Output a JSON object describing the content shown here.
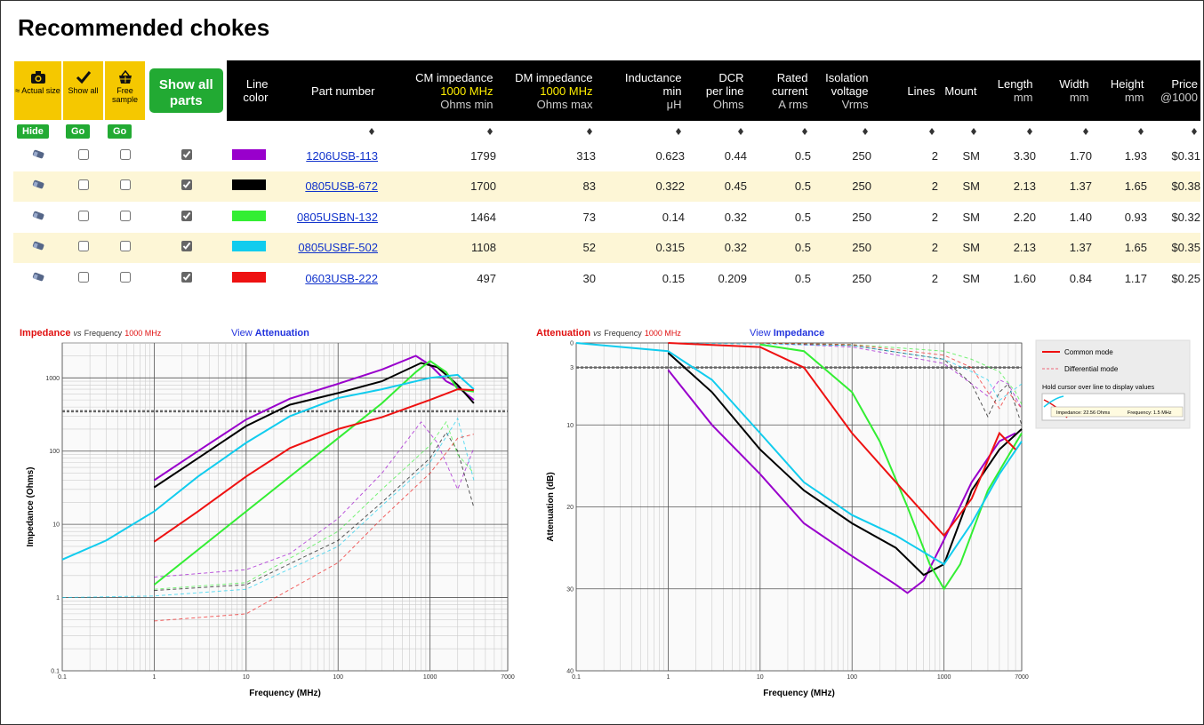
{
  "header": {
    "title": "Recommended chokes"
  },
  "toolbar": {
    "actual_size": "≈ Actual size",
    "show_all": "Show all",
    "free_sample": "Free sample",
    "show_all_parts": "Show all parts",
    "hide": "Hide",
    "go": [
      "Go",
      "Go"
    ]
  },
  "table": {
    "columns": [
      {
        "name": [
          "Line",
          "color"
        ]
      },
      {
        "name": [
          "Part number"
        ]
      },
      {
        "name": [
          "CM impedance"
        ],
        "freq": "1000 MHz",
        "unit": "Ohms min"
      },
      {
        "name": [
          "DM impedance"
        ],
        "freq": "1000 MHz",
        "unit": "Ohms max"
      },
      {
        "name": [
          "Inductance",
          "min"
        ],
        "unit": "μH"
      },
      {
        "name": [
          "DCR",
          "per line"
        ],
        "unit": "Ohms"
      },
      {
        "name": [
          "Rated",
          "current"
        ],
        "unit": "A rms"
      },
      {
        "name": [
          "Isolation",
          "voltage"
        ],
        "unit": "Vrms"
      },
      {
        "name": [
          "Lines"
        ]
      },
      {
        "name": [
          "Mount"
        ]
      },
      {
        "name": [
          "Length"
        ],
        "unit": "mm"
      },
      {
        "name": [
          "Width"
        ],
        "unit": "mm"
      },
      {
        "name": [
          "Height"
        ],
        "unit": "mm"
      },
      {
        "name": [
          "Price"
        ],
        "unit": "@1000"
      }
    ],
    "rows": [
      {
        "color": "#9900cc",
        "show_all": false,
        "free_sample": false,
        "shown": true,
        "cells": [
          "1206USB-113",
          "1799",
          "313",
          "0.623",
          "0.44",
          "0.5",
          "250",
          "2",
          "SM",
          "3.30",
          "1.70",
          "1.93",
          "$0.31"
        ]
      },
      {
        "color": "#000000",
        "show_all": false,
        "free_sample": false,
        "shown": true,
        "cells": [
          "0805USB-672",
          "1700",
          "83",
          "0.322",
          "0.45",
          "0.5",
          "250",
          "2",
          "SM",
          "2.13",
          "1.37",
          "1.65",
          "$0.38"
        ]
      },
      {
        "color": "#33ee33",
        "show_all": false,
        "free_sample": false,
        "shown": true,
        "cells": [
          "0805USBN-132",
          "1464",
          "73",
          "0.14",
          "0.32",
          "0.5",
          "250",
          "2",
          "SM",
          "2.20",
          "1.40",
          "0.93",
          "$0.32"
        ]
      },
      {
        "color": "#11ccee",
        "show_all": false,
        "free_sample": false,
        "shown": true,
        "cells": [
          "0805USBF-502",
          "1108",
          "52",
          "0.315",
          "0.32",
          "0.5",
          "250",
          "2",
          "SM",
          "2.13",
          "1.37",
          "1.65",
          "$0.35"
        ]
      },
      {
        "color": "#ee1111",
        "show_all": false,
        "free_sample": false,
        "shown": true,
        "cells": [
          "0603USB-222",
          "497",
          "30",
          "0.15",
          "0.209",
          "0.5",
          "250",
          "2",
          "SM",
          "1.60",
          "0.84",
          "1.17",
          "$0.25"
        ]
      }
    ]
  },
  "legend": {
    "common": "Common mode",
    "differential": "Differential mode",
    "hint": "Hold cursor over line to display values",
    "example": [
      "Impedance: 22.56 Ohms",
      "Frequency: 1.5 MHz"
    ],
    "common_color": "#ee1111",
    "differential_color": "#ee6677"
  },
  "chart_data": [
    {
      "type": "line",
      "title_parts": [
        "Impedance",
        "vs",
        "Frequency",
        "1000 MHz"
      ],
      "link_parts": [
        "View",
        "Attenuation"
      ],
      "xlabel": "Frequency (MHz)",
      "ylabel": "Impedance (Ohms)",
      "x_log": true,
      "y_log": true,
      "grid": true,
      "xlim": [
        0.1,
        7000
      ],
      "xticks": [
        0.1,
        1,
        10,
        100,
        1000,
        7000
      ],
      "ylim": [
        0.1,
        3000
      ],
      "yticks": [
        0.1,
        1,
        10,
        100,
        1000
      ],
      "reference_line": 350,
      "common_mode": [
        {
          "color": "#9900cc",
          "x": [
            1,
            3,
            10,
            30,
            100,
            300,
            700,
            1000,
            1500,
            2000,
            3000
          ],
          "values": [
            40,
            100,
            270,
            520,
            830,
            1300,
            2000,
            1500,
            900,
            750,
            500
          ]
        },
        {
          "color": "#000000",
          "x": [
            1,
            3,
            10,
            30,
            100,
            300,
            800,
            1200,
            2000,
            3000
          ],
          "values": [
            32,
            80,
            220,
            430,
            620,
            900,
            1600,
            1400,
            800,
            450
          ]
        },
        {
          "color": "#33ee33",
          "x": [
            1,
            10,
            100,
            300,
            700,
            1000,
            1500,
            2000,
            3000
          ],
          "values": [
            1.5,
            15,
            150,
            450,
            1200,
            1700,
            1200,
            700,
            650
          ]
        },
        {
          "color": "#11ccee",
          "x": [
            0.1,
            0.3,
            1,
            3,
            10,
            30,
            100,
            300,
            1000,
            2000,
            3000
          ],
          "values": [
            3.3,
            6,
            15,
            45,
            130,
            300,
            530,
            700,
            1000,
            1100,
            700
          ]
        },
        {
          "color": "#ee1111",
          "x": [
            1,
            3,
            10,
            30,
            100,
            300,
            1000,
            2000,
            3000
          ],
          "values": [
            5.8,
            15,
            45,
            110,
            200,
            290,
            500,
            700,
            680
          ]
        }
      ],
      "differential_mode": [
        {
          "color": "#9900cc",
          "x": [
            1,
            10,
            30,
            100,
            300,
            800,
            1200,
            2000,
            3000
          ],
          "values": [
            1.9,
            2.4,
            4,
            12,
            50,
            250,
            130,
            30,
            110
          ]
        },
        {
          "color": "#000000",
          "x": [
            1,
            10,
            100,
            300,
            1000,
            1500,
            2000,
            3000
          ],
          "values": [
            1.25,
            1.5,
            6,
            20,
            80,
            180,
            100,
            17
          ]
        },
        {
          "color": "#33ee33",
          "x": [
            1,
            10,
            100,
            300,
            1000,
            1500,
            2000,
            3000
          ],
          "values": [
            1.3,
            1.6,
            8,
            30,
            120,
            250,
            90,
            50
          ]
        },
        {
          "color": "#11ccee",
          "x": [
            0.1,
            1,
            10,
            100,
            300,
            1000,
            2000,
            3000
          ],
          "values": [
            1,
            1.05,
            1.3,
            5,
            18,
            70,
            280,
            40
          ]
        },
        {
          "color": "#ee1111",
          "x": [
            1,
            10,
            100,
            300,
            1000,
            2000,
            3000
          ],
          "values": [
            0.48,
            0.6,
            3,
            12,
            50,
            150,
            170
          ]
        }
      ]
    },
    {
      "type": "line",
      "title_parts": [
        "Attenuation",
        "vs",
        "Frequency",
        "1000 MHz"
      ],
      "link_parts": [
        "View",
        "Impedance"
      ],
      "xlabel": "Frequency (MHz)",
      "ylabel": "Attenuation (dB)",
      "x_log": true,
      "y_log": false,
      "grid": true,
      "xlim": [
        0.1,
        7000
      ],
      "xticks": [
        0.1,
        1,
        10,
        100,
        1000,
        7000
      ],
      "ylim": [
        40,
        0
      ],
      "yticks": [
        0,
        3,
        10,
        20,
        30,
        40
      ],
      "reference_line": 3,
      "common_mode": [
        {
          "color": "#9900cc",
          "x": [
            1,
            3,
            10,
            30,
            100,
            300,
            400,
            600,
            1000,
            2000,
            4000,
            6000
          ],
          "values": [
            3.3,
            10,
            16,
            22,
            26,
            29.5,
            30.5,
            29,
            24,
            17,
            12,
            11
          ]
        },
        {
          "color": "#000000",
          "x": [
            1,
            3,
            10,
            30,
            100,
            300,
            600,
            1000,
            2000,
            4000,
            7000
          ],
          "values": [
            1.2,
            6,
            13,
            18,
            22,
            25,
            28.3,
            27,
            18,
            13,
            10.5
          ]
        },
        {
          "color": "#33ee33",
          "x": [
            10,
            30,
            100,
            200,
            400,
            700,
            1000,
            1500,
            3000,
            7000
          ],
          "values": [
            0.2,
            1,
            6,
            12,
            20,
            27,
            30,
            27,
            18,
            11
          ]
        },
        {
          "color": "#11ccee",
          "x": [
            0.1,
            1,
            3,
            10,
            30,
            100,
            300,
            1000,
            2000,
            4000,
            7000
          ],
          "values": [
            0,
            1,
            4.5,
            11,
            17,
            21,
            23.5,
            27,
            22,
            16,
            12
          ]
        },
        {
          "color": "#ee1111",
          "x": [
            1,
            10,
            30,
            100,
            300,
            1000,
            2000,
            4000,
            6000
          ],
          "values": [
            0,
            0.5,
            3,
            11,
            17,
            23.5,
            19,
            11,
            13
          ]
        }
      ],
      "differential_mode": [
        {
          "color": "#9900cc",
          "x": [
            10,
            100,
            1000,
            2000,
            3000,
            4000,
            5000,
            7000
          ],
          "values": [
            0,
            0.5,
            2.5,
            5,
            6.5,
            4.5,
            5,
            8
          ]
        },
        {
          "color": "#000000",
          "x": [
            10,
            100,
            1000,
            2000,
            3000,
            4000,
            5000,
            7000
          ],
          "values": [
            0,
            0.3,
            2,
            5,
            9,
            6,
            5,
            10
          ]
        },
        {
          "color": "#33ee33",
          "x": [
            10,
            100,
            1000,
            2000,
            4000,
            6000,
            7000
          ],
          "values": [
            0,
            0.2,
            1,
            2,
            3.5,
            6,
            7.5
          ]
        },
        {
          "color": "#11ccee",
          "x": [
            1,
            100,
            1000,
            2000,
            3000,
            4000,
            7000
          ],
          "values": [
            0,
            0.3,
            2,
            3.5,
            4.5,
            7,
            5
          ]
        },
        {
          "color": "#ee1111",
          "x": [
            10,
            100,
            1000,
            2000,
            3000,
            4000,
            5000,
            7000
          ],
          "values": [
            0,
            0.2,
            1.5,
            3,
            6,
            8,
            6,
            8
          ]
        }
      ]
    }
  ]
}
